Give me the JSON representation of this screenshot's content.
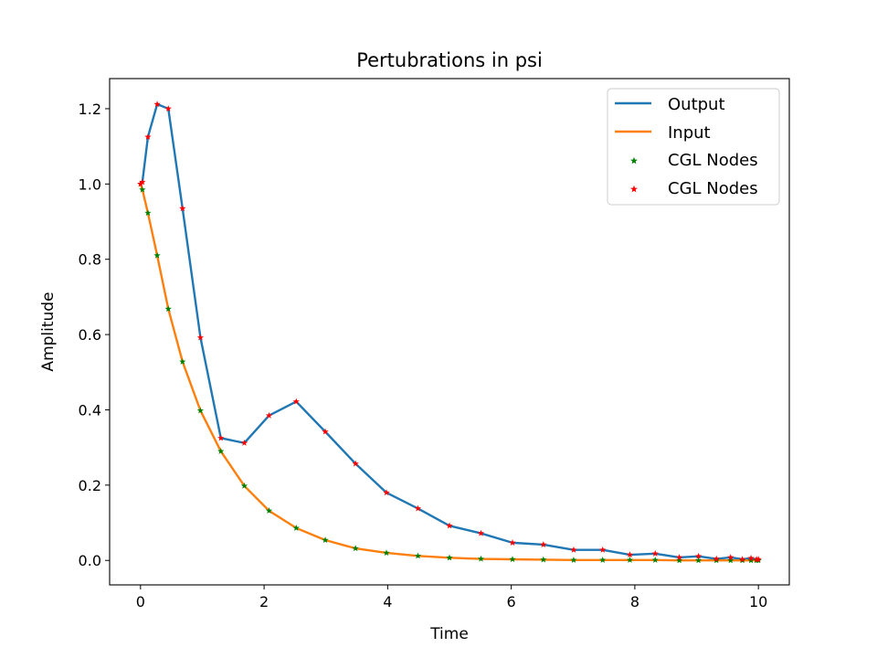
{
  "chart_data": {
    "type": "line",
    "title": "Pertubrations in psi",
    "xlabel": "Time",
    "ylabel": "Amplitude",
    "xlim": [
      -0.5,
      10.5
    ],
    "ylim": [
      -0.065,
      1.28
    ],
    "xticks": [
      0,
      2,
      4,
      6,
      8,
      10
    ],
    "yticks": [
      0.0,
      0.2,
      0.4,
      0.6,
      0.8,
      1.0,
      1.2
    ],
    "xtick_labels": [
      "0",
      "2",
      "4",
      "6",
      "8",
      "10"
    ],
    "ytick_labels": [
      "0.0",
      "0.2",
      "0.4",
      "0.6",
      "0.8",
      "1.0",
      "1.2"
    ],
    "grid": false,
    "legend_position": "top-right",
    "x": [
      0,
      0.03,
      0.12,
      0.27,
      0.45,
      0.68,
      0.97,
      1.3,
      1.68,
      2.08,
      2.52,
      2.99,
      3.48,
      3.98,
      4.49,
      5.0,
      5.51,
      6.02,
      6.52,
      7.01,
      7.48,
      7.92,
      8.33,
      8.72,
      9.03,
      9.32,
      9.55,
      9.74,
      9.88,
      9.97,
      10.0
    ],
    "series": [
      {
        "name": "Output",
        "kind": "line",
        "color": "#1f77b4",
        "values": [
          1.0,
          1.005,
          1.125,
          1.212,
          1.2,
          0.935,
          0.592,
          0.325,
          0.312,
          0.385,
          0.422,
          0.342,
          0.257,
          0.18,
          0.138,
          0.092,
          0.072,
          0.047,
          0.042,
          0.028,
          0.028,
          0.015,
          0.018,
          0.008,
          0.011,
          0.004,
          0.008,
          0.003,
          0.006,
          0.003,
          0.003
        ]
      },
      {
        "name": "Input",
        "kind": "line",
        "color": "#ff7f0e",
        "values": [
          1.0,
          0.985,
          0.923,
          0.81,
          0.668,
          0.528,
          0.398,
          0.29,
          0.198,
          0.132,
          0.086,
          0.054,
          0.032,
          0.02,
          0.012,
          0.007,
          0.004,
          0.003,
          0.002,
          0.001,
          0.001,
          0.001,
          0.001,
          0.0,
          0.0,
          0.0,
          0.0,
          0.0,
          0.0,
          0.0,
          0.0
        ]
      },
      {
        "name": "CGL Nodes",
        "kind": "scatter",
        "marker": "star",
        "color": "#008000",
        "ref": "Input"
      },
      {
        "name": "CGL Nodes",
        "kind": "scatter",
        "marker": "star",
        "color": "#ff0000",
        "ref": "Output"
      }
    ]
  }
}
